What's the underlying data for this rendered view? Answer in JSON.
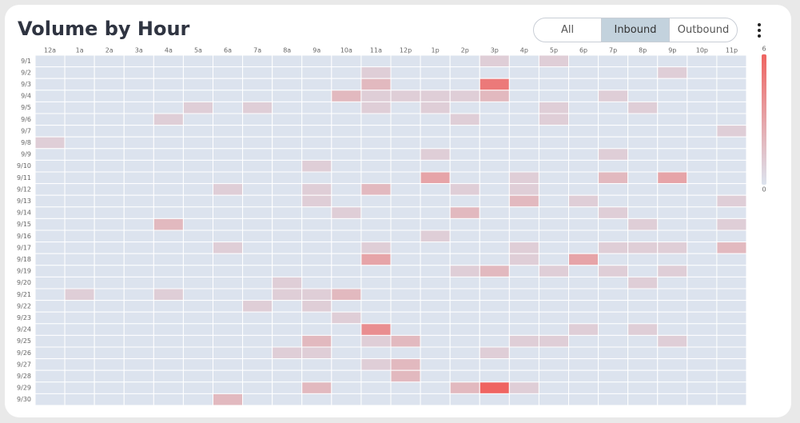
{
  "chart_data": {
    "type": "heatmap",
    "title": "Volume by Hour",
    "x_categories": [
      "12a",
      "1a",
      "2a",
      "3a",
      "4a",
      "5a",
      "6a",
      "7a",
      "8a",
      "9a",
      "10a",
      "11a",
      "12p",
      "1p",
      "2p",
      "3p",
      "4p",
      "5p",
      "6p",
      "7p",
      "8p",
      "9p",
      "10p",
      "11p"
    ],
    "y_categories": [
      "9/1",
      "9/2",
      "9/3",
      "9/4",
      "9/5",
      "9/6",
      "9/7",
      "9/8",
      "9/9",
      "9/10",
      "9/11",
      "9/12",
      "9/13",
      "9/14",
      "9/15",
      "9/16",
      "9/17",
      "9/18",
      "9/19",
      "9/20",
      "9/21",
      "9/22",
      "9/23",
      "9/24",
      "9/25",
      "9/26",
      "9/27",
      "9/28",
      "9/29",
      "9/30"
    ],
    "values": [
      [
        0,
        0,
        0,
        0,
        0,
        0,
        0,
        0,
        0,
        0,
        0,
        0,
        0,
        0,
        0,
        1,
        0,
        1,
        0,
        0,
        0,
        0,
        0,
        0
      ],
      [
        0,
        0,
        0,
        0,
        0,
        0,
        0,
        0,
        0,
        0,
        0,
        1,
        0,
        0,
        0,
        0,
        0,
        0,
        0,
        0,
        0,
        1,
        0,
        0
      ],
      [
        0,
        0,
        0,
        0,
        0,
        0,
        0,
        0,
        0,
        0,
        0,
        2,
        0,
        0,
        0,
        5,
        0,
        0,
        0,
        0,
        0,
        0,
        0,
        0
      ],
      [
        0,
        0,
        0,
        0,
        0,
        0,
        0,
        0,
        0,
        0,
        2,
        1,
        1,
        1,
        1,
        2,
        0,
        0,
        0,
        1,
        0,
        0,
        0,
        0
      ],
      [
        0,
        0,
        0,
        0,
        0,
        1,
        0,
        1,
        0,
        0,
        0,
        1,
        0,
        1,
        0,
        0,
        0,
        1,
        0,
        0,
        1,
        0,
        0,
        0
      ],
      [
        0,
        0,
        0,
        0,
        1,
        0,
        0,
        0,
        0,
        0,
        0,
        0,
        0,
        0,
        1,
        0,
        0,
        1,
        0,
        0,
        0,
        0,
        0,
        0
      ],
      [
        0,
        0,
        0,
        0,
        0,
        0,
        0,
        0,
        0,
        0,
        0,
        0,
        0,
        0,
        0,
        0,
        0,
        0,
        0,
        0,
        0,
        0,
        0,
        1
      ],
      [
        1,
        0,
        0,
        0,
        0,
        0,
        0,
        0,
        0,
        0,
        0,
        0,
        0,
        0,
        0,
        0,
        0,
        0,
        0,
        0,
        0,
        0,
        0,
        0
      ],
      [
        0,
        0,
        0,
        0,
        0,
        0,
        0,
        0,
        0,
        0,
        0,
        0,
        0,
        1,
        0,
        0,
        0,
        0,
        0,
        1,
        0,
        0,
        0,
        0
      ],
      [
        0,
        0,
        0,
        0,
        0,
        0,
        0,
        0,
        0,
        1,
        0,
        0,
        0,
        0,
        0,
        0,
        0,
        0,
        0,
        0,
        0,
        0,
        0,
        0
      ],
      [
        0,
        0,
        0,
        0,
        0,
        0,
        0,
        0,
        0,
        0,
        0,
        0,
        0,
        3,
        0,
        0,
        1,
        0,
        0,
        2,
        0,
        3,
        0,
        0
      ],
      [
        0,
        0,
        0,
        0,
        0,
        0,
        1,
        0,
        0,
        1,
        0,
        2,
        0,
        0,
        1,
        0,
        1,
        0,
        0,
        0,
        0,
        0,
        0,
        0
      ],
      [
        0,
        0,
        0,
        0,
        0,
        0,
        0,
        0,
        0,
        1,
        0,
        0,
        0,
        0,
        0,
        0,
        2,
        0,
        1,
        0,
        0,
        0,
        0,
        1
      ],
      [
        0,
        0,
        0,
        0,
        0,
        0,
        0,
        0,
        0,
        0,
        1,
        0,
        0,
        0,
        2,
        0,
        0,
        0,
        0,
        1,
        0,
        0,
        0,
        0
      ],
      [
        0,
        0,
        0,
        0,
        2,
        0,
        0,
        0,
        0,
        0,
        0,
        0,
        0,
        0,
        0,
        0,
        0,
        0,
        0,
        0,
        1,
        0,
        0,
        1
      ],
      [
        0,
        0,
        0,
        0,
        0,
        0,
        0,
        0,
        0,
        0,
        0,
        0,
        0,
        1,
        0,
        0,
        0,
        0,
        0,
        0,
        0,
        0,
        0,
        0
      ],
      [
        0,
        0,
        0,
        0,
        0,
        0,
        1,
        0,
        0,
        0,
        0,
        1,
        0,
        0,
        0,
        0,
        1,
        0,
        0,
        1,
        1,
        1,
        0,
        2
      ],
      [
        0,
        0,
        0,
        0,
        0,
        0,
        0,
        0,
        0,
        0,
        0,
        3,
        0,
        0,
        0,
        0,
        1,
        0,
        3,
        0,
        0,
        0,
        0,
        0
      ],
      [
        0,
        0,
        0,
        0,
        0,
        0,
        0,
        0,
        0,
        0,
        0,
        0,
        0,
        0,
        1,
        2,
        0,
        1,
        0,
        1,
        0,
        1,
        0,
        0
      ],
      [
        0,
        0,
        0,
        0,
        0,
        0,
        0,
        0,
        1,
        0,
        0,
        0,
        0,
        0,
        0,
        0,
        0,
        0,
        0,
        0,
        1,
        0,
        0,
        0
      ],
      [
        0,
        1,
        0,
        0,
        1,
        0,
        0,
        0,
        1,
        1,
        2,
        0,
        0,
        0,
        0,
        0,
        0,
        0,
        0,
        0,
        0,
        0,
        0,
        0
      ],
      [
        0,
        0,
        0,
        0,
        0,
        0,
        0,
        1,
        0,
        1,
        0,
        0,
        0,
        0,
        0,
        0,
        0,
        0,
        0,
        0,
        0,
        0,
        0,
        0
      ],
      [
        0,
        0,
        0,
        0,
        0,
        0,
        0,
        0,
        0,
        0,
        1,
        0,
        0,
        0,
        0,
        0,
        0,
        0,
        0,
        0,
        0,
        0,
        0,
        0
      ],
      [
        0,
        0,
        0,
        0,
        0,
        0,
        0,
        0,
        0,
        0,
        0,
        4,
        0,
        0,
        0,
        0,
        0,
        0,
        1,
        0,
        1,
        0,
        0,
        0
      ],
      [
        0,
        0,
        0,
        0,
        0,
        0,
        0,
        0,
        0,
        2,
        0,
        1,
        2,
        0,
        0,
        0,
        1,
        1,
        0,
        0,
        0,
        1,
        0,
        0
      ],
      [
        0,
        0,
        0,
        0,
        0,
        0,
        0,
        0,
        1,
        1,
        0,
        0,
        0,
        0,
        0,
        1,
        0,
        0,
        0,
        0,
        0,
        0,
        0,
        0
      ],
      [
        0,
        0,
        0,
        0,
        0,
        0,
        0,
        0,
        0,
        0,
        0,
        1,
        2,
        0,
        0,
        0,
        0,
        0,
        0,
        0,
        0,
        0,
        0,
        0
      ],
      [
        0,
        0,
        0,
        0,
        0,
        0,
        0,
        0,
        0,
        0,
        0,
        0,
        2,
        0,
        0,
        0,
        0,
        0,
        0,
        0,
        0,
        0,
        0,
        0
      ],
      [
        0,
        0,
        0,
        0,
        0,
        0,
        0,
        0,
        0,
        2,
        0,
        0,
        0,
        0,
        2,
        6,
        1,
        0,
        0,
        0,
        0,
        0,
        0,
        0
      ],
      [
        0,
        0,
        0,
        0,
        0,
        0,
        2,
        0,
        0,
        0,
        0,
        0,
        0,
        0,
        0,
        0,
        0,
        0,
        0,
        0,
        0,
        0,
        0,
        0
      ]
    ],
    "zlim": [
      0,
      6
    ],
    "zticks": [
      0,
      6
    ],
    "colors": [
      "#dce3ee",
      "#ef6461"
    ]
  },
  "controls": {
    "tabs": [
      "All",
      "Inbound",
      "Outbound"
    ],
    "selected": 1
  }
}
